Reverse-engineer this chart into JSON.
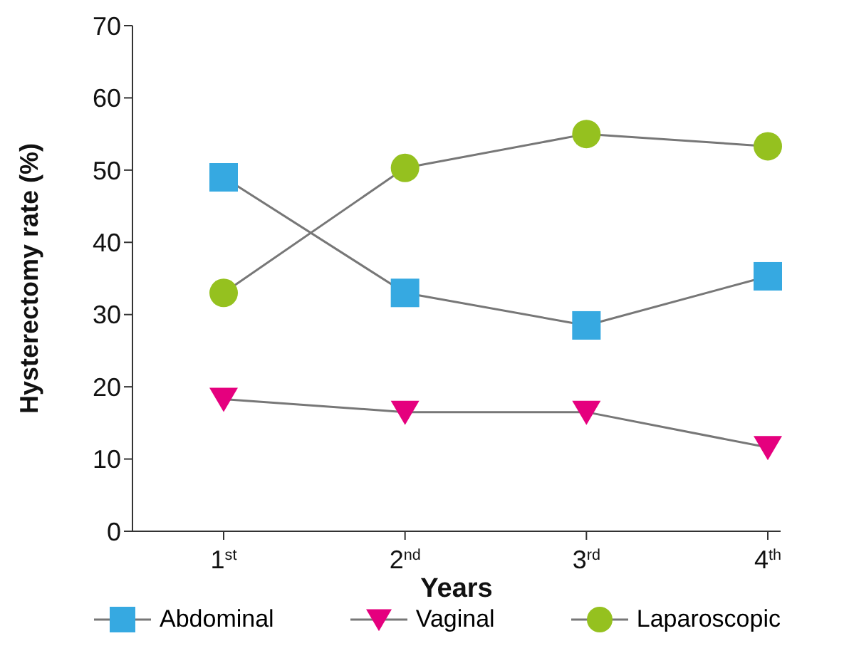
{
  "chart_data": {
    "type": "line",
    "xlabel": "Years",
    "ylabel": "Hysterectomy rate  (%)",
    "categories": [
      "1$^{st}$",
      "2$^{nd}$",
      "3$^{rd}$",
      "4$^{th}$"
    ],
    "series": [
      {
        "name": "Abdominal",
        "color": "#36a9e1",
        "marker": "square",
        "values": [
          49,
          33,
          28.5,
          35.3
        ]
      },
      {
        "name": "Vaginal",
        "color": "#e5007e",
        "marker": "triangle",
        "values": [
          18.3,
          16.5,
          16.5,
          11.6
        ]
      },
      {
        "name": "Laparoscopic",
        "color": "#95c11f",
        "marker": "circle",
        "values": [
          33,
          50.3,
          55,
          53.3
        ]
      }
    ],
    "ylim": [
      0,
      70
    ],
    "yticks": [
      0,
      10,
      20,
      30,
      40,
      50,
      60,
      70
    ],
    "legend": "bottom",
    "line_style": "solid"
  }
}
